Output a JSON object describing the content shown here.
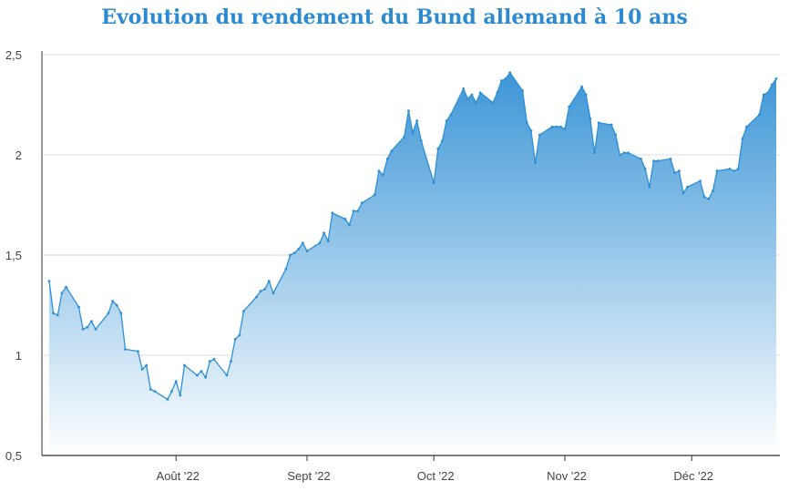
{
  "chart_data": {
    "type": "area",
    "title": "Evolution du rendement du Bund allemand à 10 ans",
    "xlabel": "",
    "ylabel": "",
    "ylim": [
      0.5,
      2.5
    ],
    "y_ticks": [
      "0,5",
      "1",
      "1,5",
      "2",
      "2,5"
    ],
    "x_ticks": [
      {
        "label": "Août '22",
        "day": 31
      },
      {
        "label": "Sept '22",
        "day": 62
      },
      {
        "label": "Oct '22",
        "day": 92
      },
      {
        "label": "Nov '22",
        "day": 123
      },
      {
        "label": "Déc '22",
        "day": 153
      }
    ],
    "grid": "horizontal",
    "colors": {
      "line": "#2e8fd6",
      "fill_top": "#3d96d6",
      "fill_bottom": "#ffffff",
      "title": "#2b8ad0",
      "grid": "#dddddd"
    },
    "series": [
      {
        "name": "",
        "x_note": "days since 1 July 2022",
        "points": [
          [
            1,
            1.37
          ],
          [
            2,
            1.21
          ],
          [
            3,
            1.2
          ],
          [
            4,
            1.31
          ],
          [
            5,
            1.34
          ],
          [
            8,
            1.24
          ],
          [
            9,
            1.13
          ],
          [
            10,
            1.14
          ],
          [
            11,
            1.17
          ],
          [
            12,
            1.13
          ],
          [
            15,
            1.21
          ],
          [
            16,
            1.27
          ],
          [
            17,
            1.25
          ],
          [
            18,
            1.21
          ],
          [
            19,
            1.03
          ],
          [
            22,
            1.02
          ],
          [
            23,
            0.93
          ],
          [
            24,
            0.95
          ],
          [
            25,
            0.83
          ],
          [
            26,
            0.82
          ],
          [
            29,
            0.78
          ],
          [
            30,
            0.82
          ],
          [
            31,
            0.87
          ],
          [
            32,
            0.8
          ],
          [
            33,
            0.95
          ],
          [
            36,
            0.9
          ],
          [
            37,
            0.92
          ],
          [
            38,
            0.89
          ],
          [
            39,
            0.97
          ],
          [
            40,
            0.98
          ],
          [
            43,
            0.9
          ],
          [
            44,
            0.97
          ],
          [
            45,
            1.08
          ],
          [
            46,
            1.1
          ],
          [
            47,
            1.22
          ],
          [
            50,
            1.29
          ],
          [
            51,
            1.32
          ],
          [
            52,
            1.33
          ],
          [
            53,
            1.37
          ],
          [
            54,
            1.31
          ],
          [
            57,
            1.43
          ],
          [
            58,
            1.5
          ],
          [
            59,
            1.51
          ],
          [
            60,
            1.53
          ],
          [
            61,
            1.56
          ],
          [
            62,
            1.52
          ],
          [
            65,
            1.56
          ],
          [
            66,
            1.61
          ],
          [
            67,
            1.57
          ],
          [
            68,
            1.71
          ],
          [
            71,
            1.68
          ],
          [
            72,
            1.65
          ],
          [
            73,
            1.72
          ],
          [
            74,
            1.72
          ],
          [
            75,
            1.76
          ],
          [
            78,
            1.8
          ],
          [
            79,
            1.92
          ],
          [
            80,
            1.9
          ],
          [
            81,
            1.98
          ],
          [
            82,
            2.02
          ],
          [
            85,
            2.09
          ],
          [
            86,
            2.22
          ],
          [
            87,
            2.11
          ],
          [
            88,
            2.17
          ],
          [
            89,
            2.07
          ],
          [
            92,
            1.86
          ],
          [
            93,
            2.03
          ],
          [
            94,
            2.07
          ],
          [
            95,
            2.17
          ],
          [
            96,
            2.2
          ],
          [
            99,
            2.33
          ],
          [
            100,
            2.28
          ],
          [
            101,
            2.3
          ],
          [
            102,
            2.26
          ],
          [
            103,
            2.31
          ],
          [
            106,
            2.26
          ],
          [
            107,
            2.31
          ],
          [
            108,
            2.37
          ],
          [
            109,
            2.38
          ],
          [
            110,
            2.41
          ],
          [
            113,
            2.32
          ],
          [
            114,
            2.16
          ],
          [
            115,
            2.12
          ],
          [
            116,
            1.96
          ],
          [
            117,
            2.1
          ],
          [
            120,
            2.14
          ],
          [
            121,
            2.14
          ],
          [
            122,
            2.14
          ],
          [
            123,
            2.13
          ],
          [
            124,
            2.24
          ],
          [
            127,
            2.34
          ],
          [
            128,
            2.3
          ],
          [
            129,
            2.18
          ],
          [
            130,
            2.01
          ],
          [
            131,
            2.16
          ],
          [
            134,
            2.15
          ],
          [
            135,
            2.1
          ],
          [
            136,
            2.0
          ],
          [
            137,
            2.01
          ],
          [
            138,
            2.01
          ],
          [
            141,
            1.98
          ],
          [
            142,
            1.93
          ],
          [
            143,
            1.84
          ],
          [
            144,
            1.97
          ],
          [
            145,
            1.97
          ],
          [
            148,
            1.98
          ],
          [
            149,
            1.91
          ],
          [
            150,
            1.92
          ],
          [
            151,
            1.81
          ],
          [
            152,
            1.84
          ],
          [
            155,
            1.87
          ],
          [
            156,
            1.79
          ],
          [
            157,
            1.78
          ],
          [
            158,
            1.82
          ],
          [
            159,
            1.92
          ],
          [
            162,
            1.93
          ],
          [
            163,
            1.92
          ],
          [
            164,
            1.93
          ],
          [
            165,
            2.08
          ],
          [
            166,
            2.14
          ],
          [
            169,
            2.2
          ],
          [
            170,
            2.3
          ],
          [
            171,
            2.31
          ],
          [
            172,
            2.35
          ],
          [
            173,
            2.38
          ]
        ]
      }
    ]
  }
}
